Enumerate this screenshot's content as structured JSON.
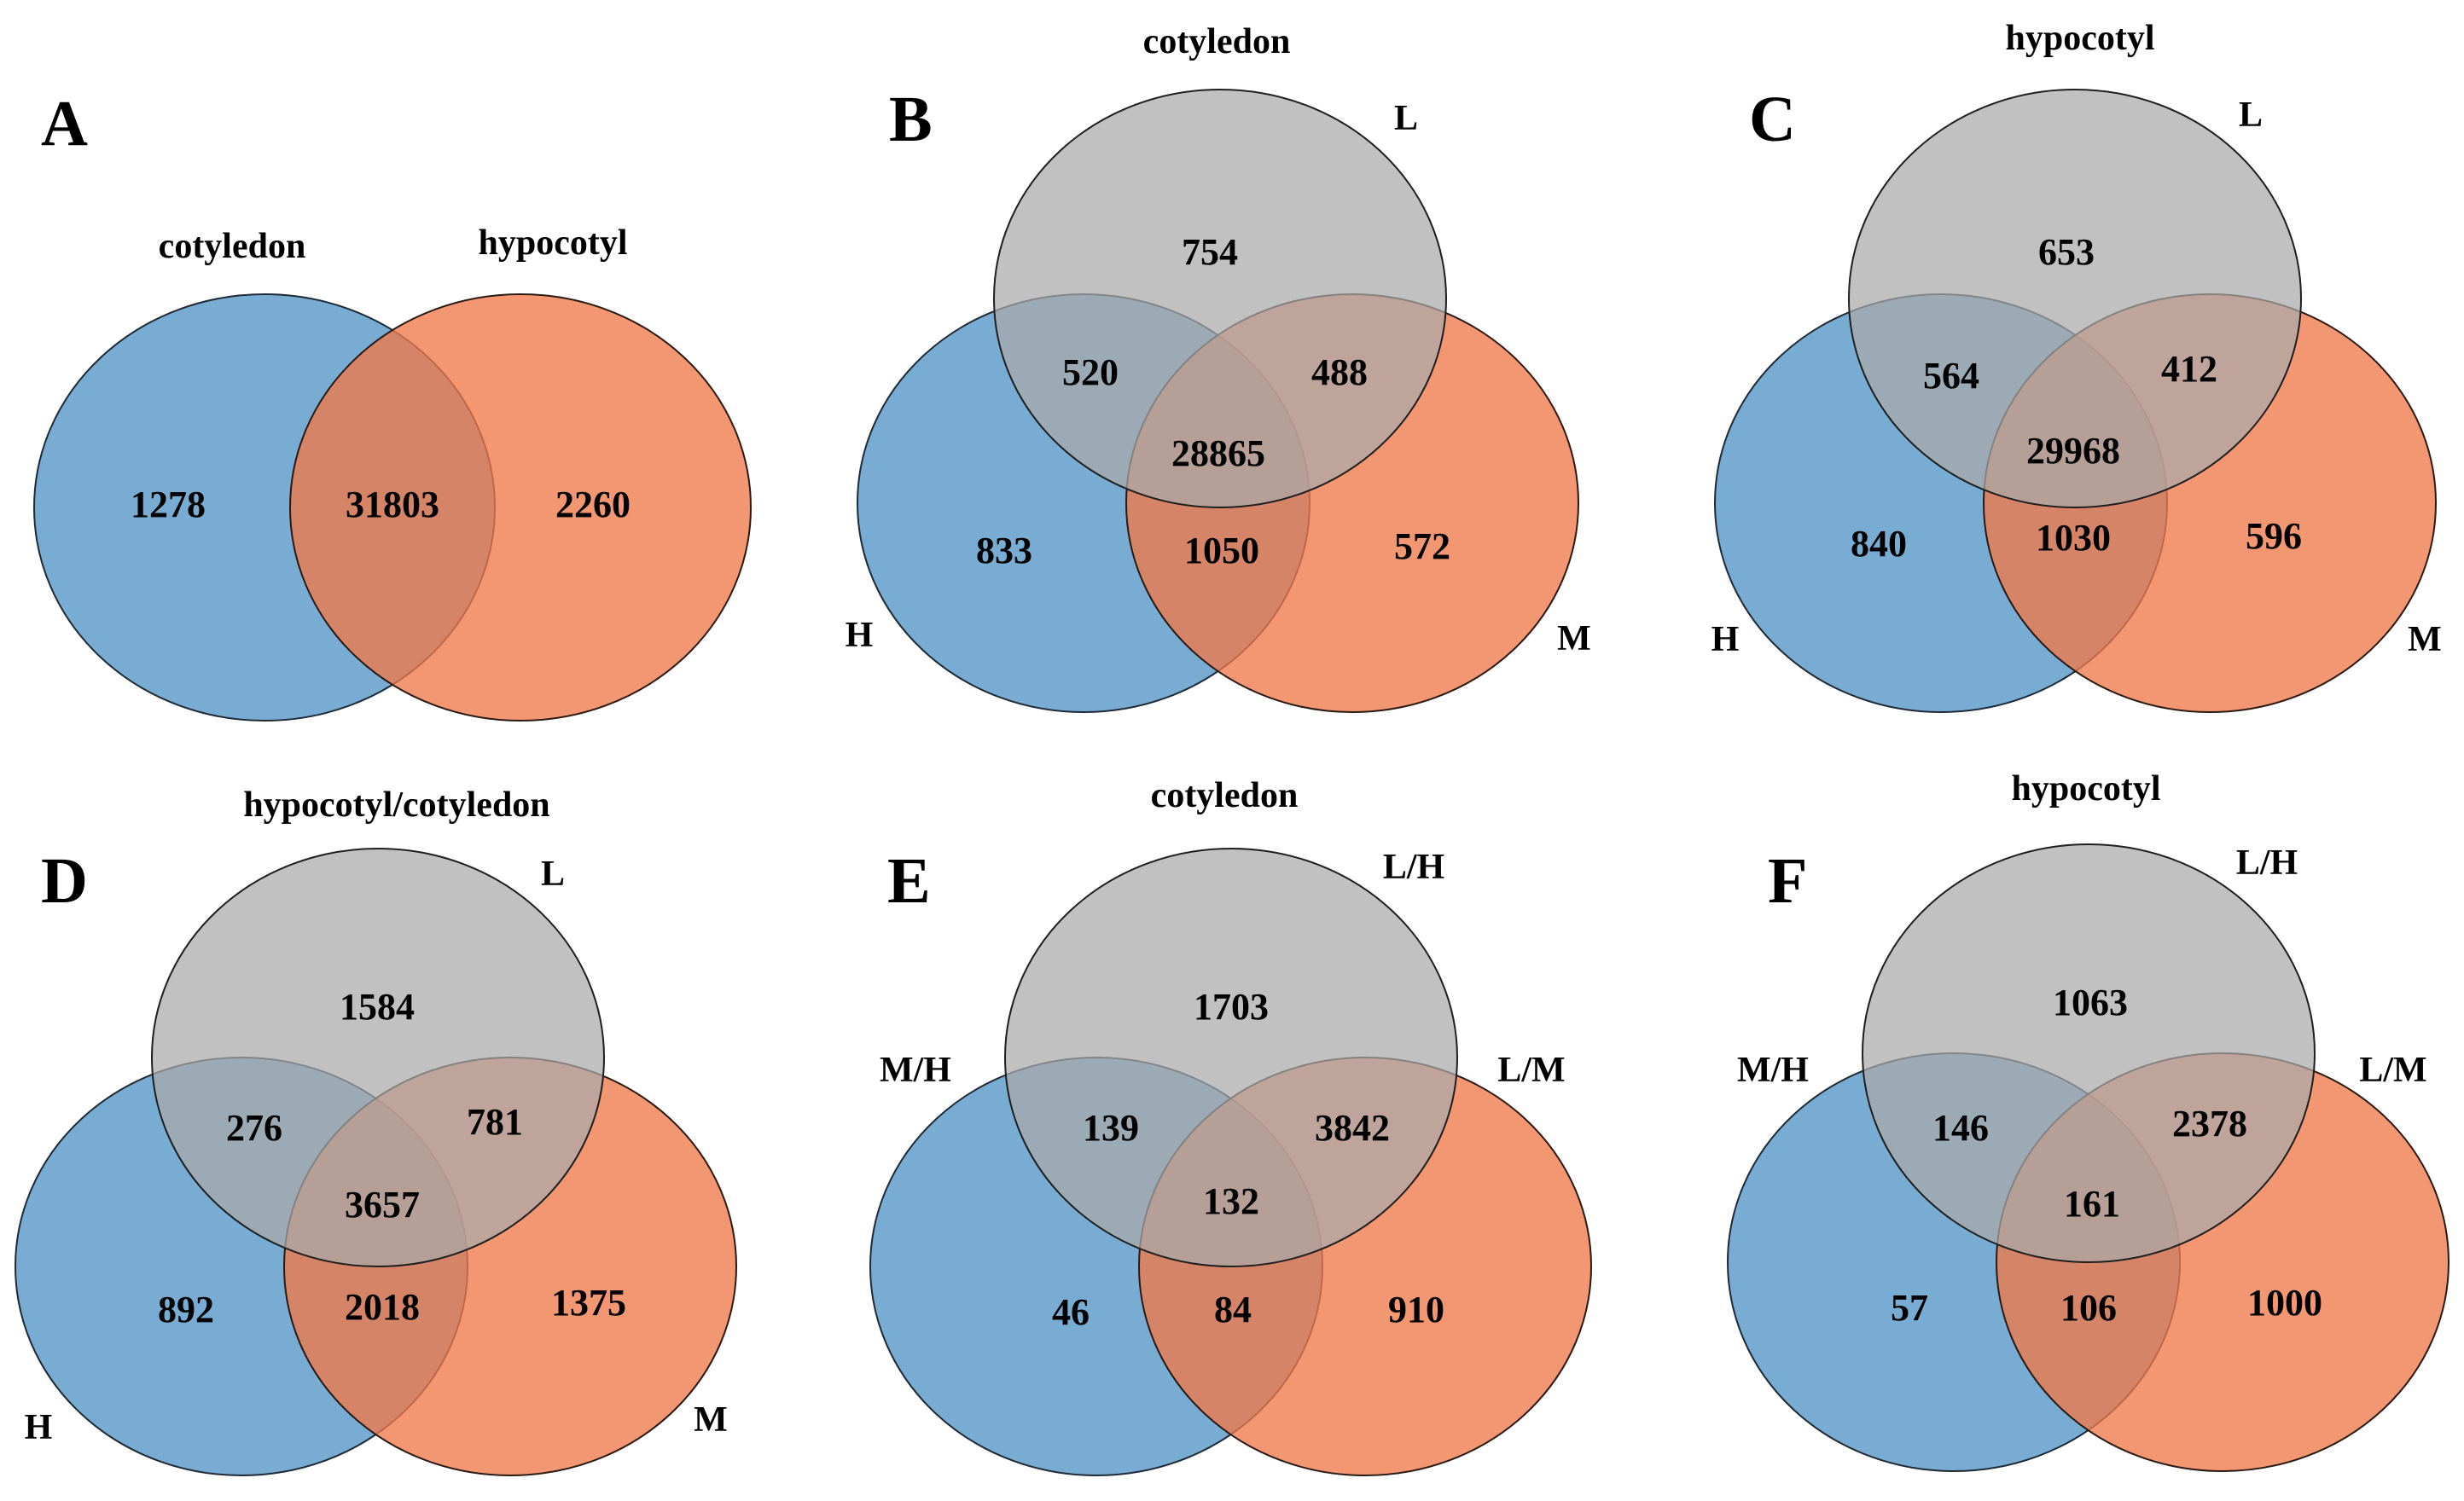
{
  "panels": {
    "A": {
      "letter": "A",
      "set_labels": {
        "left": "cotyledon",
        "right": "hypocotyl"
      },
      "counts": {
        "left_only": "1278",
        "both": "31803",
        "right_only": "2260"
      }
    },
    "B": {
      "letter": "B",
      "title": "cotyledon",
      "set_labels": {
        "top": "L",
        "left": "H",
        "right": "M"
      },
      "counts": {
        "top_only": "754",
        "top_left": "520",
        "top_right": "488",
        "all": "28865",
        "left_only": "833",
        "left_right": "1050",
        "right_only": "572"
      }
    },
    "C": {
      "letter": "C",
      "title": "hypocotyl",
      "set_labels": {
        "top": "L",
        "left": "H",
        "right": "M"
      },
      "counts": {
        "top_only": "653",
        "top_left": "564",
        "top_right": "412",
        "all": "29968",
        "left_only": "840",
        "left_right": "1030",
        "right_only": "596"
      }
    },
    "D": {
      "letter": "D",
      "title": "hypocotyl/cotyledon",
      "set_labels": {
        "top": "L",
        "left": "H",
        "right": "M"
      },
      "counts": {
        "top_only": "1584",
        "top_left": "276",
        "top_right": "781",
        "all": "3657",
        "left_only": "892",
        "left_right": "2018",
        "right_only": "1375"
      }
    },
    "E": {
      "letter": "E",
      "title": "cotyledon",
      "set_labels": {
        "top": "L/H",
        "left": "M/H",
        "right": "L/M"
      },
      "counts": {
        "top_only": "1703",
        "top_left": "139",
        "top_right": "3842",
        "all": "132",
        "left_only": "46",
        "left_right": "84",
        "right_only": "910"
      }
    },
    "F": {
      "letter": "F",
      "title": "hypocotyl",
      "set_labels": {
        "top": "L/H",
        "left": "M/H",
        "right": "L/M"
      },
      "counts": {
        "top_only": "1063",
        "top_left": "146",
        "top_right": "2378",
        "all": "161",
        "left_only": "57",
        "left_right": "106",
        "right_only": "1000"
      }
    }
  },
  "colors": {
    "set_left": "#79acd3",
    "set_right": "#f0794a",
    "set_top": "#a9a9a9"
  }
}
